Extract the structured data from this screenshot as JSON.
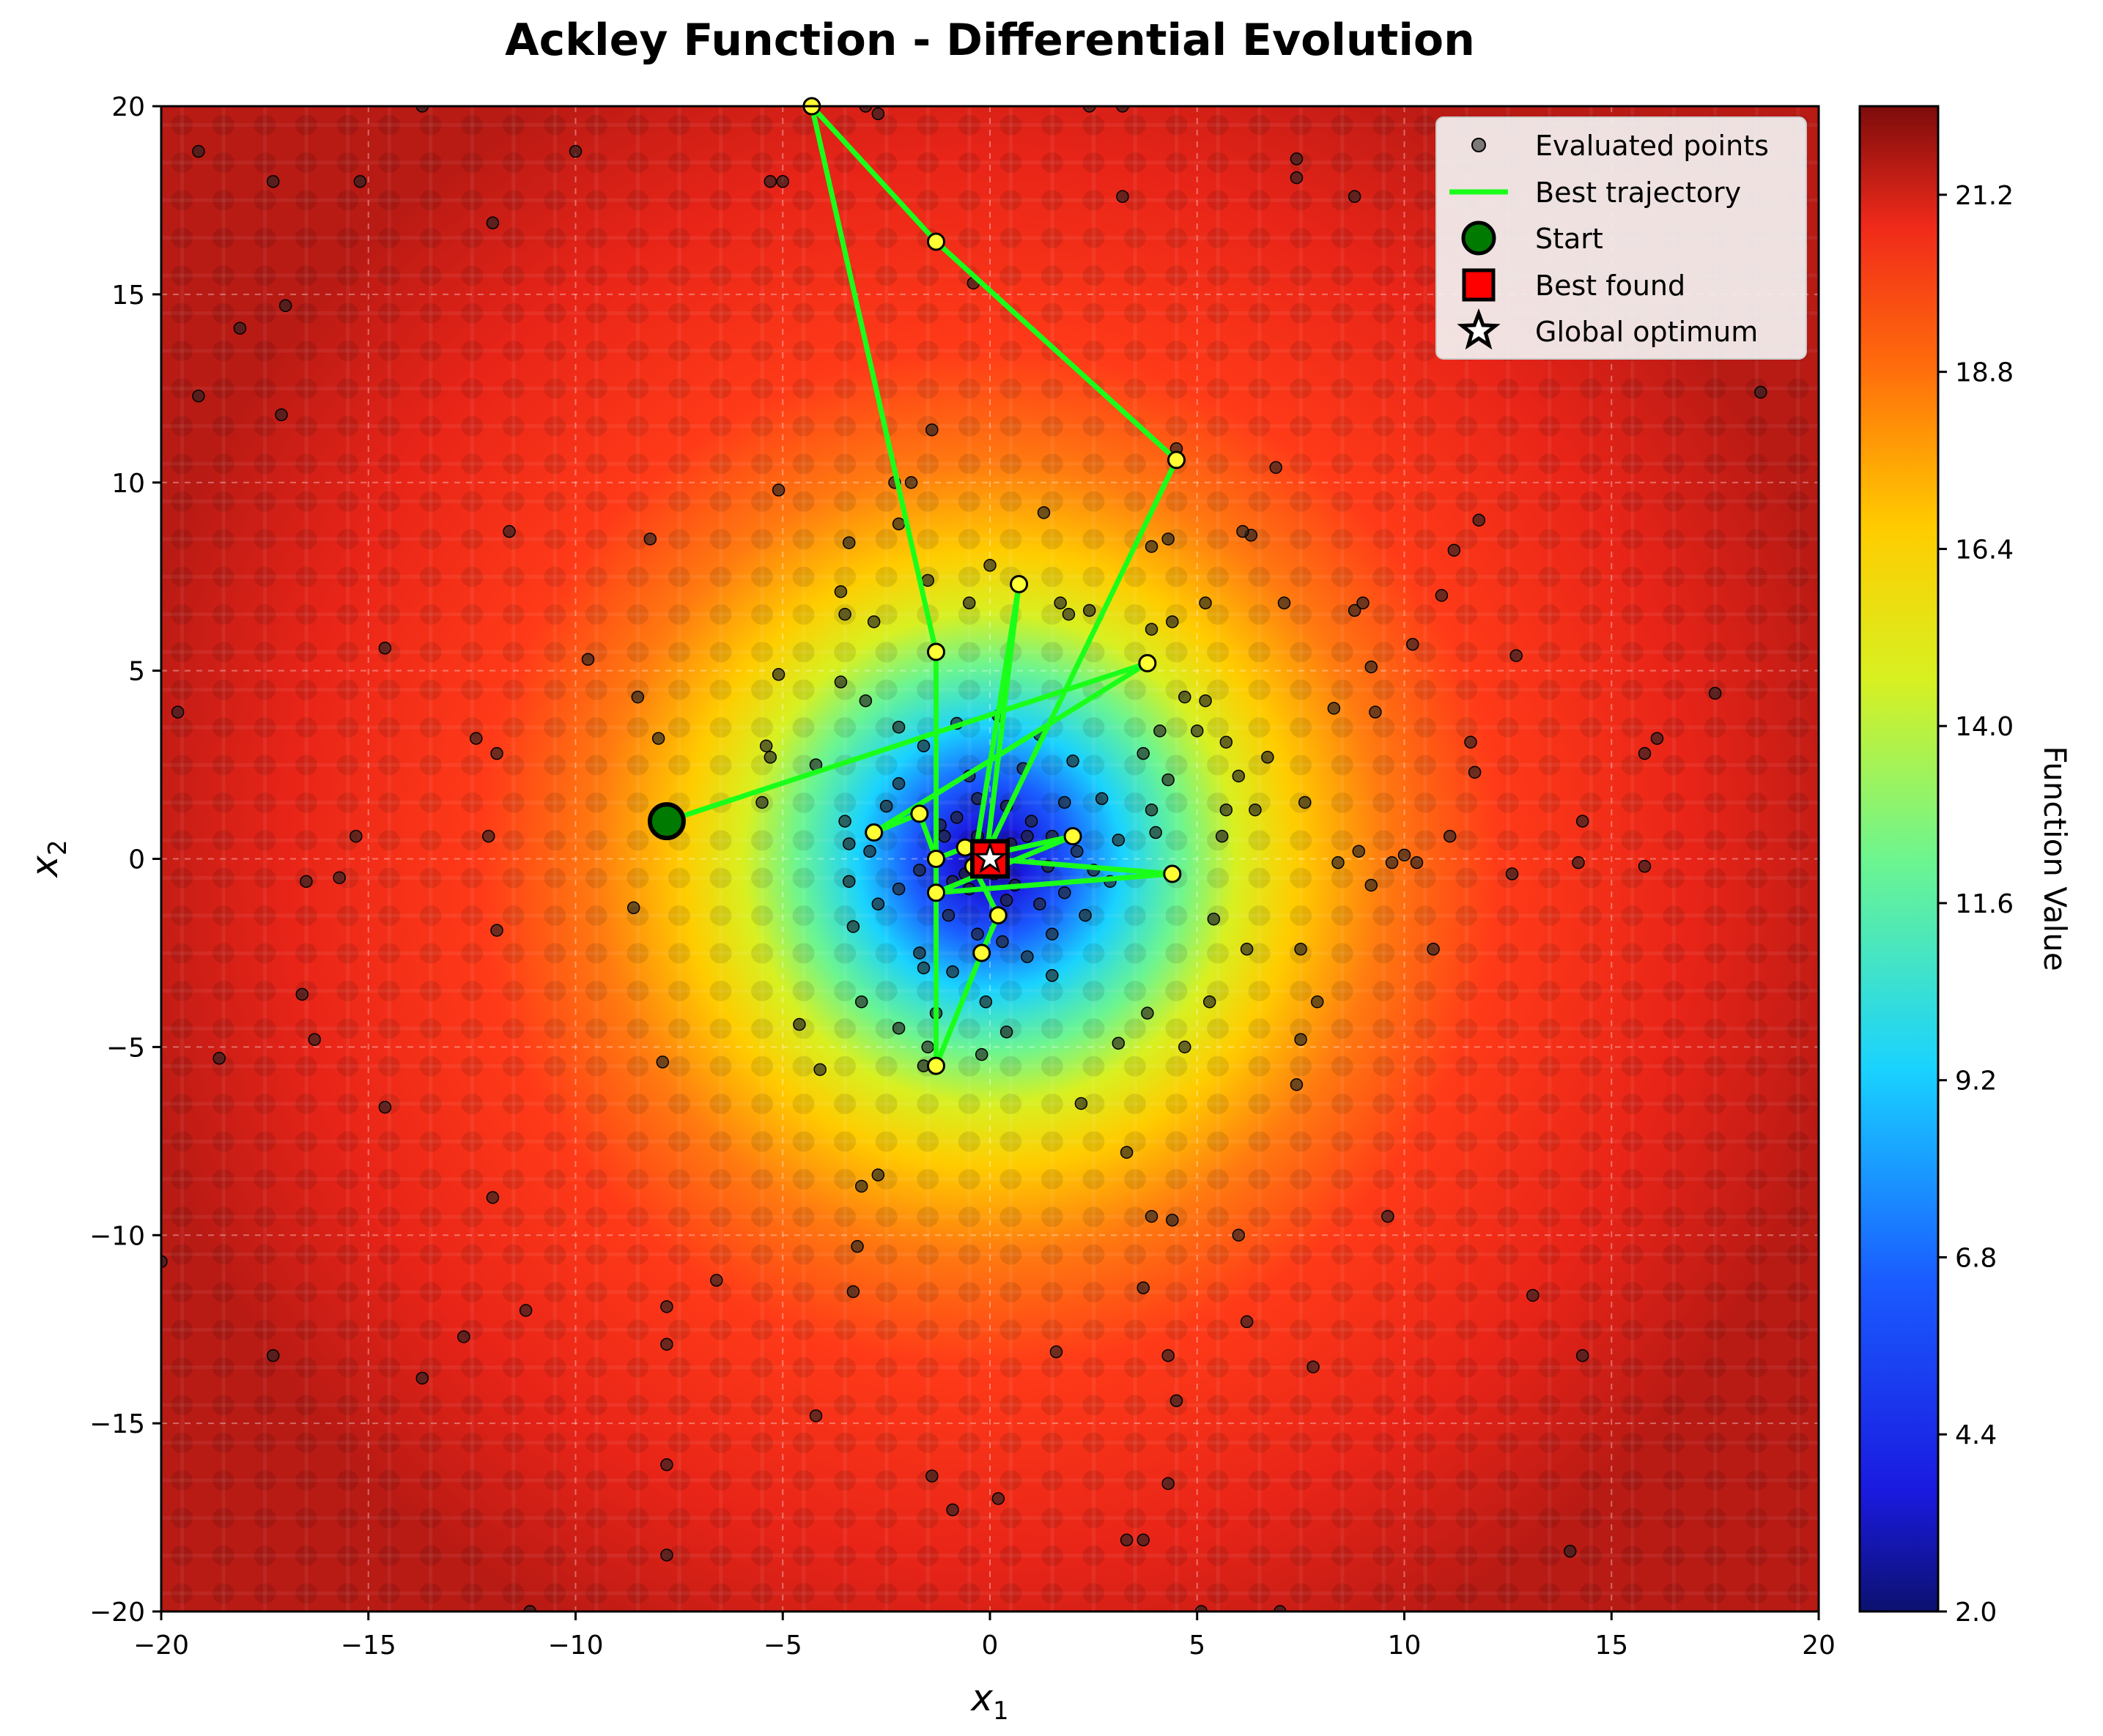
{
  "chart_data": {
    "type": "scatter",
    "title": "Ackley Function - Differential Evolution",
    "xlabel": "x",
    "xlabel_sub": "1",
    "ylabel": "x",
    "ylabel_sub": "2",
    "xlim": [
      -20,
      20
    ],
    "ylim": [
      -20,
      20
    ],
    "xticks": [
      -20,
      -15,
      -10,
      -5,
      0,
      5,
      10,
      15,
      20
    ],
    "yticks": [
      -20,
      -15,
      -10,
      -5,
      0,
      5,
      10,
      15,
      20
    ],
    "grid": true,
    "legend_position": "top-right",
    "colorbar": {
      "label": "Function Value",
      "min": 2.0,
      "max": 22.4,
      "ticks": [
        2.0,
        4.4,
        6.8,
        9.2,
        11.6,
        14.0,
        16.4,
        18.8,
        21.2
      ],
      "colormap": "jet"
    },
    "legend": [
      {
        "label": "Evaluated points",
        "marker": "small-dot"
      },
      {
        "label": "Best trajectory",
        "marker": "line"
      },
      {
        "label": "Start",
        "marker": "circle"
      },
      {
        "label": "Best found",
        "marker": "square"
      },
      {
        "label": "Global optimum",
        "marker": "star"
      }
    ],
    "trajectory_points": [
      [
        -7.8,
        1.0
      ],
      [
        3.8,
        5.2
      ],
      [
        -2.8,
        0.7
      ],
      [
        -1.7,
        1.2
      ],
      [
        -1.3,
        0.0
      ],
      [
        -0.6,
        0.3
      ],
      [
        -0.1,
        -0.1
      ],
      [
        0.7,
        7.3
      ],
      [
        -0.4,
        -0.2
      ],
      [
        0.2,
        -1.5
      ],
      [
        -0.2,
        -2.5
      ],
      [
        -1.3,
        -5.5
      ],
      [
        -1.3,
        5.5
      ],
      [
        -4.3,
        20.0
      ],
      [
        -1.3,
        16.4
      ],
      [
        4.5,
        10.6
      ],
      [
        -0.1,
        0.1
      ],
      [
        2.0,
        0.6
      ],
      [
        -1.3,
        -0.9
      ],
      [
        4.4,
        -0.4
      ],
      [
        0.0,
        0.0
      ]
    ],
    "start": [
      -7.8,
      1.0
    ],
    "best_found": [
      0.0,
      0.0
    ],
    "global_optimum": [
      0.0,
      0.0
    ],
    "evaluated_points": [
      [
        -19.1,
        18.8
      ],
      [
        -17.3,
        18.0
      ],
      [
        -12.0,
        16.9
      ],
      [
        -10.0,
        18.8
      ],
      [
        -15.2,
        18.0
      ],
      [
        -13.7,
        20.0
      ],
      [
        -17.0,
        14.7
      ],
      [
        -18.1,
        14.1
      ],
      [
        -19.1,
        12.3
      ],
      [
        -17.1,
        11.8
      ],
      [
        -11.6,
        8.7
      ],
      [
        -8.2,
        8.5
      ],
      [
        -9.7,
        5.3
      ],
      [
        -14.6,
        5.6
      ],
      [
        -8.5,
        4.3
      ],
      [
        -8.0,
        3.2
      ],
      [
        -12.4,
        3.2
      ],
      [
        -11.9,
        2.8
      ],
      [
        -15.3,
        0.6
      ],
      [
        -12.1,
        0.6
      ],
      [
        -16.5,
        -0.6
      ],
      [
        -15.7,
        -0.5
      ],
      [
        -11.9,
        -1.9
      ],
      [
        -8.6,
        -1.3
      ],
      [
        -16.6,
        -3.6
      ],
      [
        -16.3,
        -4.8
      ],
      [
        -18.6,
        -5.3
      ],
      [
        -14.6,
        -6.6
      ],
      [
        -12.0,
        -9.0
      ],
      [
        -7.9,
        -5.4
      ],
      [
        -20.0,
        -10.7
      ],
      [
        -11.2,
        -12.0
      ],
      [
        -12.7,
        -12.7
      ],
      [
        -17.3,
        -13.2
      ],
      [
        -13.7,
        -13.8
      ],
      [
        -7.8,
        -11.9
      ],
      [
        -7.8,
        -12.9
      ],
      [
        -7.8,
        -16.1
      ],
      [
        -7.8,
        -18.5
      ],
      [
        -11.1,
        -20.0
      ],
      [
        -19.6,
        3.9
      ],
      [
        -2.7,
        19.8
      ],
      [
        -5.3,
        18.0
      ],
      [
        -5.0,
        18.0
      ],
      [
        -3.0,
        20.0
      ],
      [
        -1.4,
        11.4
      ],
      [
        -2.3,
        10.0
      ],
      [
        -2.2,
        8.9
      ],
      [
        -1.9,
        10.0
      ],
      [
        -3.4,
        8.4
      ],
      [
        -5.1,
        9.8
      ],
      [
        -3.5,
        6.5
      ],
      [
        -3.6,
        7.1
      ],
      [
        -5.1,
        4.9
      ],
      [
        -3.6,
        4.7
      ],
      [
        -2.8,
        6.3
      ],
      [
        -1.5,
        7.4
      ],
      [
        -0.5,
        6.8
      ],
      [
        0.0,
        7.8
      ],
      [
        1.7,
        6.8
      ],
      [
        1.9,
        6.5
      ],
      [
        -3.0,
        4.2
      ],
      [
        -2.2,
        3.5
      ],
      [
        -5.4,
        3.0
      ],
      [
        -5.5,
        1.5
      ],
      [
        -5.3,
        2.7
      ],
      [
        -4.2,
        2.5
      ],
      [
        -3.5,
        1.0
      ],
      [
        -3.4,
        0.4
      ],
      [
        -2.9,
        0.2
      ],
      [
        -3.4,
        -0.6
      ],
      [
        -3.3,
        -1.8
      ],
      [
        -2.7,
        -1.2
      ],
      [
        -2.2,
        -0.8
      ],
      [
        -1.7,
        -0.3
      ],
      [
        -1.1,
        0.6
      ],
      [
        -0.8,
        1.1
      ],
      [
        -0.3,
        1.6
      ],
      [
        0.4,
        1.4
      ],
      [
        1.0,
        1.0
      ],
      [
        1.5,
        0.6
      ],
      [
        2.1,
        0.2
      ],
      [
        2.5,
        -0.3
      ],
      [
        1.8,
        -0.9
      ],
      [
        1.2,
        -1.2
      ],
      [
        0.6,
        -0.7
      ],
      [
        0.1,
        -0.4
      ],
      [
        -0.5,
        -0.8
      ],
      [
        -1.0,
        -1.5
      ],
      [
        -1.7,
        -2.5
      ],
      [
        -1.6,
        -2.9
      ],
      [
        -0.9,
        -3.0
      ],
      [
        -0.3,
        -2.0
      ],
      [
        0.3,
        -2.2
      ],
      [
        0.9,
        -2.6
      ],
      [
        1.5,
        -2.0
      ],
      [
        2.3,
        -1.5
      ],
      [
        2.9,
        -0.6
      ],
      [
        3.1,
        0.5
      ],
      [
        2.7,
        1.6
      ],
      [
        2.0,
        2.6
      ],
      [
        1.2,
        3.3
      ],
      [
        0.2,
        3.8
      ],
      [
        -0.8,
        3.6
      ],
      [
        -1.6,
        3.0
      ],
      [
        -2.2,
        2.0
      ],
      [
        -2.5,
        1.4
      ],
      [
        -0.5,
        2.2
      ],
      [
        0.8,
        2.4
      ],
      [
        1.8,
        1.5
      ],
      [
        0.5,
        0.4
      ],
      [
        -0.3,
        0.6
      ],
      [
        -0.6,
        -0.4
      ],
      [
        0.4,
        -1.1
      ],
      [
        1.4,
        -0.2
      ],
      [
        -1.2,
        0.9
      ],
      [
        -0.9,
        -0.6
      ],
      [
        0.9,
        0.6
      ],
      [
        -0.1,
        -3.8
      ],
      [
        -0.2,
        -5.2
      ],
      [
        -1.5,
        -5.0
      ],
      [
        -1.6,
        -5.5
      ],
      [
        -2.2,
        -4.5
      ],
      [
        -3.1,
        -3.8
      ],
      [
        -2.7,
        -8.4
      ],
      [
        -3.1,
        -8.7
      ],
      [
        -3.2,
        -10.3
      ],
      [
        -3.3,
        -11.5
      ],
      [
        -6.6,
        -11.2
      ],
      [
        -4.2,
        -14.8
      ],
      [
        -1.4,
        -16.4
      ],
      [
        -0.9,
        -17.3
      ],
      [
        0.2,
        -17.0
      ],
      [
        1.6,
        -13.1
      ],
      [
        3.7,
        -11.4
      ],
      [
        4.3,
        -13.2
      ],
      [
        4.3,
        -16.6
      ],
      [
        4.5,
        -14.4
      ],
      [
        3.3,
        -18.1
      ],
      [
        3.7,
        -18.1
      ],
      [
        5.1,
        -20.0
      ],
      [
        7.0,
        -20.0
      ],
      [
        6.2,
        -12.3
      ],
      [
        6.0,
        -10.0
      ],
      [
        3.9,
        -9.5
      ],
      [
        4.4,
        -9.6
      ],
      [
        7.8,
        -13.5
      ],
      [
        9.6,
        -9.5
      ],
      [
        7.4,
        -6.0
      ],
      [
        5.3,
        -3.8
      ],
      [
        3.8,
        -4.1
      ],
      [
        3.1,
        -4.9
      ],
      [
        2.2,
        -6.5
      ],
      [
        3.3,
        -7.8
      ],
      [
        4.7,
        -5.0
      ],
      [
        6.2,
        -2.4
      ],
      [
        7.5,
        -2.4
      ],
      [
        7.9,
        -3.8
      ],
      [
        7.5,
        -4.8
      ],
      [
        5.4,
        -1.6
      ],
      [
        5.6,
        0.6
      ],
      [
        5.7,
        1.3
      ],
      [
        6.4,
        1.3
      ],
      [
        6.0,
        2.2
      ],
      [
        5.7,
        3.1
      ],
      [
        5.2,
        4.2
      ],
      [
        4.1,
        3.4
      ],
      [
        4.3,
        2.1
      ],
      [
        3.9,
        1.3
      ],
      [
        4.0,
        0.7
      ],
      [
        3.7,
        2.8
      ],
      [
        5.0,
        3.4
      ],
      [
        6.7,
        2.7
      ],
      [
        7.6,
        1.5
      ],
      [
        8.3,
        4.0
      ],
      [
        8.4,
        -0.1
      ],
      [
        8.9,
        0.2
      ],
      [
        9.2,
        -0.7
      ],
      [
        9.7,
        -0.1
      ],
      [
        10.0,
        0.1
      ],
      [
        10.3,
        -0.1
      ],
      [
        10.7,
        -2.4
      ],
      [
        11.1,
        0.6
      ],
      [
        11.6,
        3.1
      ],
      [
        11.7,
        2.3
      ],
      [
        12.6,
        -0.4
      ],
      [
        12.7,
        5.4
      ],
      [
        10.9,
        7.0
      ],
      [
        11.2,
        8.2
      ],
      [
        11.8,
        9.0
      ],
      [
        10.2,
        5.7
      ],
      [
        9.2,
        5.1
      ],
      [
        9.3,
        3.9
      ],
      [
        8.8,
        6.6
      ],
      [
        9.0,
        6.8
      ],
      [
        7.1,
        6.8
      ],
      [
        6.3,
        8.6
      ],
      [
        6.1,
        8.7
      ],
      [
        6.9,
        10.4
      ],
      [
        4.5,
        10.9
      ],
      [
        3.9,
        8.3
      ],
      [
        4.3,
        8.5
      ],
      [
        3.9,
        6.1
      ],
      [
        4.4,
        6.3
      ],
      [
        5.2,
        6.8
      ],
      [
        2.4,
        6.6
      ],
      [
        1.3,
        9.2
      ],
      [
        0.7,
        7.3
      ],
      [
        3.2,
        17.6
      ],
      [
        3.2,
        20.0
      ],
      [
        2.4,
        20.0
      ],
      [
        -0.4,
        15.3
      ],
      [
        7.4,
        18.1
      ],
      [
        7.4,
        18.6
      ],
      [
        8.8,
        17.6
      ],
      [
        14.3,
        1.0
      ],
      [
        14.2,
        -0.1
      ],
      [
        16.1,
        3.2
      ],
      [
        15.8,
        2.8
      ],
      [
        17.5,
        4.4
      ],
      [
        18.6,
        12.4
      ],
      [
        14.3,
        -13.2
      ],
      [
        14.0,
        -18.4
      ],
      [
        13.1,
        -11.6
      ],
      [
        15.8,
        -0.2
      ],
      [
        4.7,
        4.3
      ],
      [
        -4.6,
        -4.4
      ],
      [
        -4.1,
        -5.6
      ],
      [
        -1.3,
        -4.1
      ],
      [
        0.4,
        -4.6
      ],
      [
        1.5,
        -3.1
      ]
    ]
  }
}
